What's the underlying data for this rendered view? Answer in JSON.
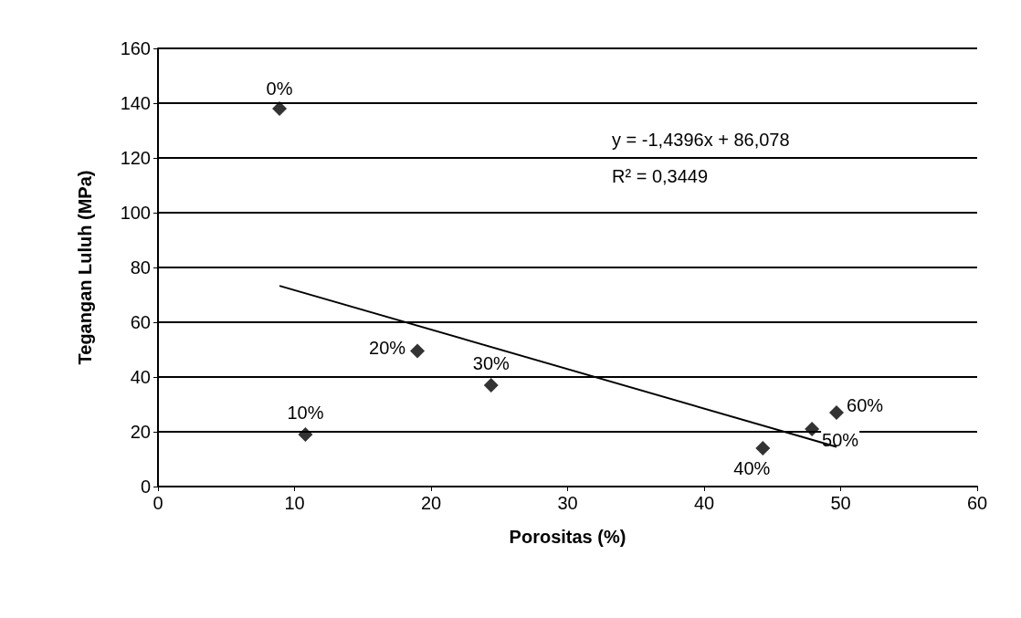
{
  "chart_data": {
    "type": "scatter",
    "xlabel": "Porositas (%)",
    "ylabel": "Tegangan Luluh (MPa)",
    "xlim": [
      0,
      60
    ],
    "xticks": [
      0,
      10,
      20,
      30,
      40,
      50,
      60
    ],
    "ylim": [
      0,
      160
    ],
    "yticks": [
      0,
      20,
      40,
      60,
      80,
      100,
      120,
      140,
      160
    ],
    "grid": "y",
    "marker": "diamond",
    "series": [
      {
        "color": "#000000",
        "x": [
          8.9,
          10.8,
          19,
          24.4,
          44.3,
          47.9,
          49.7
        ],
        "values": [
          138,
          19,
          49.5,
          37,
          14,
          21,
          27
        ]
      },
      {
        "type": "line",
        "color": "#000000",
        "marker": "none",
        "line_style": "solid",
        "x": [
          8.9,
          49.7
        ],
        "values": [
          73.3,
          14.5
        ]
      }
    ],
    "annotations": [
      "y = -1,4396x + 86,078",
      "R² = 0,3449",
      {
        "text": "0%",
        "x": 8.9,
        "y": 138
      },
      {
        "text": "10%",
        "x": 10.8,
        "y": 19
      },
      {
        "text": "20%",
        "x": 19,
        "y": 49.5
      },
      {
        "text": "30%",
        "x": 24.4,
        "y": 37
      },
      {
        "text": "40%",
        "x": 44.3,
        "y": 14
      },
      {
        "text": "50%",
        "x": 47.9,
        "y": 21
      },
      {
        "text": "60%",
        "x": 49.7,
        "y": 27
      }
    ]
  }
}
